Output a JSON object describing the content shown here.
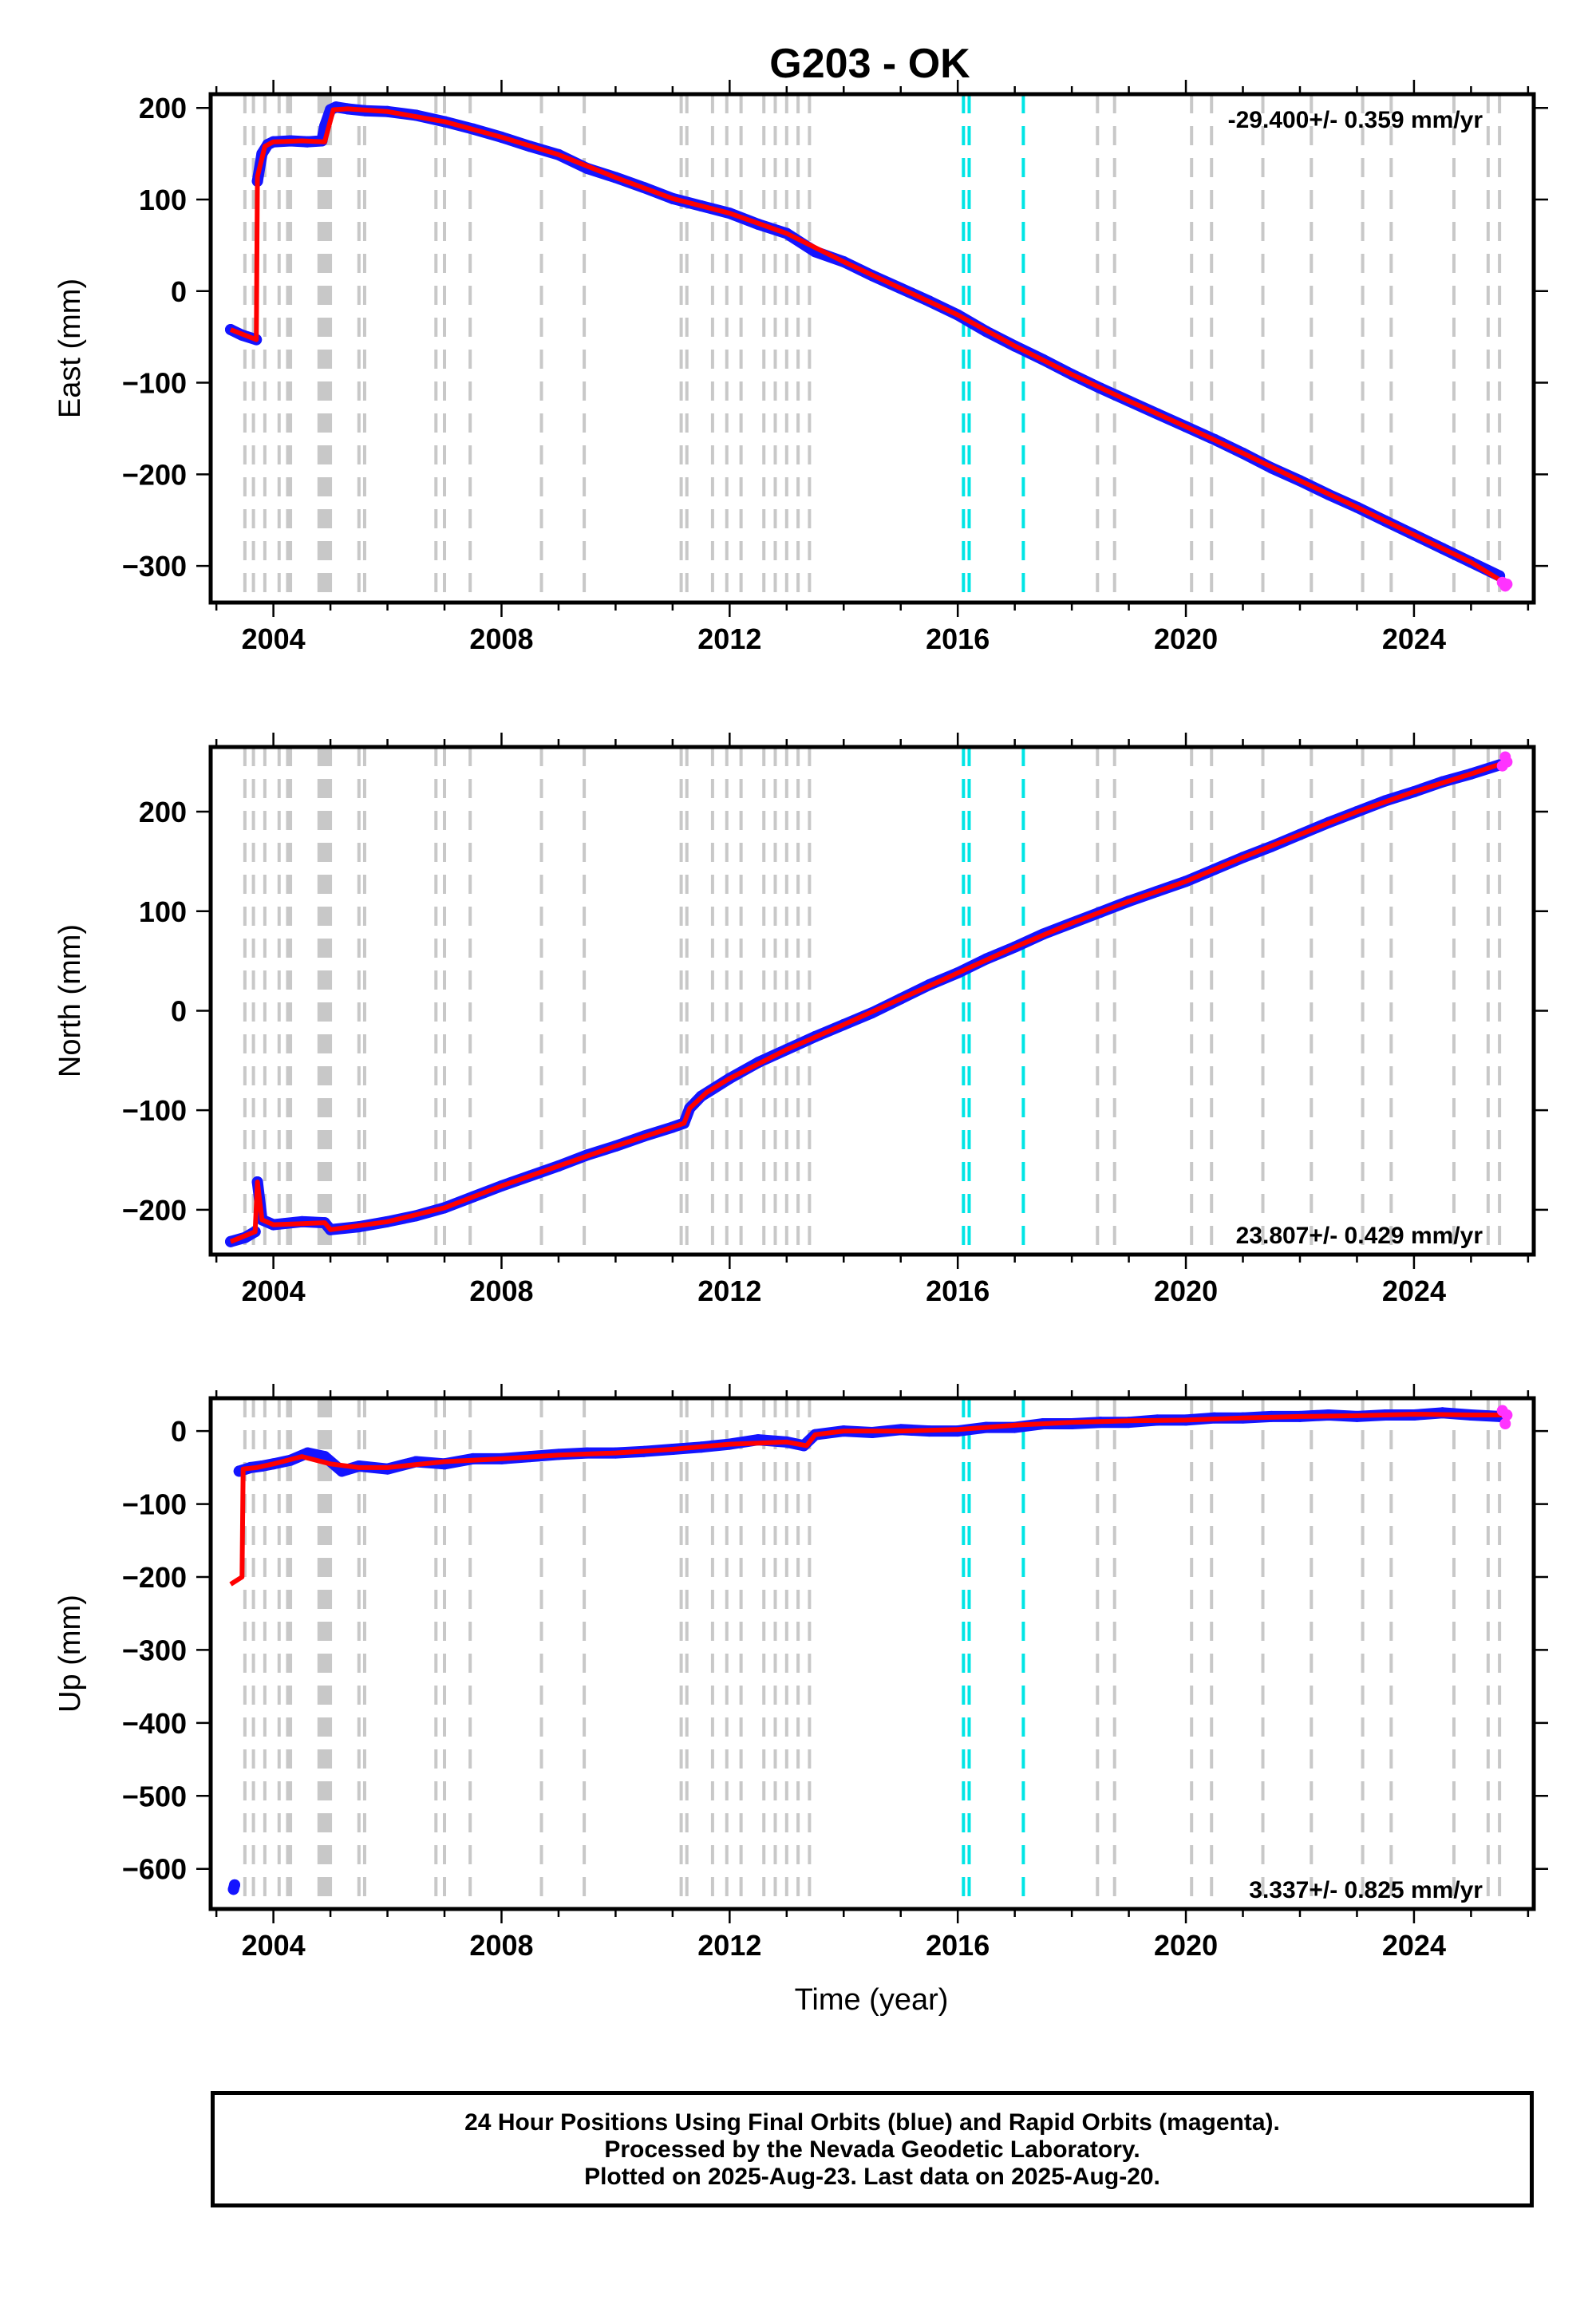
{
  "title": "G203 - OK",
  "xlabel": "Time (year)",
  "footer": {
    "line1": "24 Hour Positions Using Final Orbits (blue) and Rapid Orbits (magenta).",
    "line2": "Processed by the Nevada Geodetic Laboratory.",
    "line3": "Plotted on 2025-Aug-23. Last data on 2025-Aug-20."
  },
  "colors": {
    "final_orbits": "#1414ff",
    "rapid_orbits": "#ff33ff",
    "model": "#ff0000",
    "equipment_change": "#c8c8c8",
    "earthquake": "#00e5e5"
  },
  "chart_data": [
    {
      "type": "scatter",
      "panel": "east",
      "ylabel": "East (mm)",
      "rate_label": "-29.400+/- 0.359 mm/yr",
      "xlim": [
        2002.9,
        2026.1
      ],
      "ylim": [
        -340,
        215
      ],
      "xticks": [
        2004,
        2008,
        2012,
        2016,
        2020,
        2024
      ],
      "yticks": [
        200,
        100,
        0,
        -100,
        -200,
        -300
      ],
      "grid": false,
      "series": [
        {
          "name": "Final Orbits",
          "color": "blue",
          "x": [
            2003.25,
            2003.45,
            2003.7,
            2003.72,
            2003.8,
            2003.9,
            2004.0,
            2004.3,
            2004.6,
            2004.85,
            2004.9,
            2005.0,
            2005.1,
            2005.3,
            2005.6,
            2006.0,
            2006.5,
            2007.0,
            2007.5,
            2008.0,
            2008.5,
            2009.0,
            2009.5,
            2010.0,
            2010.5,
            2011.0,
            2011.5,
            2012.0,
            2012.5,
            2013.0,
            2013.5,
            2014.0,
            2014.5,
            2015.0,
            2015.5,
            2016.0,
            2016.5,
            2017.0,
            2017.5,
            2018.0,
            2018.5,
            2019.0,
            2019.5,
            2020.0,
            2020.5,
            2021.0,
            2021.5,
            2022.0,
            2022.5,
            2023.0,
            2023.5,
            2024.0,
            2024.5,
            2025.0,
            2025.5
          ],
          "y": [
            -42,
            -48,
            -53,
            120,
            150,
            160,
            163,
            164,
            163,
            164,
            180,
            198,
            201,
            199,
            197,
            196,
            192,
            185,
            177,
            168,
            158,
            149,
            134,
            124,
            113,
            101,
            93,
            85,
            73,
            63,
            43,
            32,
            17,
            3,
            -11,
            -26,
            -44,
            -60,
            -75,
            -91,
            -106,
            -120,
            -134,
            -148,
            -162,
            -177,
            -193,
            -207,
            -222,
            -236,
            -251,
            -266,
            -281,
            -296,
            -311
          ]
        },
        {
          "name": "Rapid Orbits",
          "color": "magenta",
          "x": [
            2025.55,
            2025.6,
            2025.63
          ],
          "y": [
            -318,
            -322,
            -320
          ]
        }
      ],
      "model": {
        "x": [
          2003.25,
          2003.7,
          2003.72,
          2003.85,
          2004.0,
          2004.5,
          2004.9,
          2005.05,
          2005.3,
          2006.0,
          2007.0,
          2008.0,
          2009.0,
          2010.0,
          2011.0,
          2012.0,
          2013.0,
          2014.0,
          2015.0,
          2016.0,
          2017.0,
          2018.0,
          2019.0,
          2020.0,
          2021.0,
          2022.0,
          2023.0,
          2024.0,
          2025.0,
          2025.63
        ],
        "y": [
          -42,
          -53,
          125,
          158,
          163,
          164,
          163,
          198,
          199,
          196,
          185,
          168,
          149,
          124,
          101,
          85,
          63,
          32,
          3,
          -26,
          -60,
          -91,
          -120,
          -148,
          -177,
          -207,
          -236,
          -266,
          -296,
          -320
        ]
      }
    },
    {
      "type": "scatter",
      "panel": "north",
      "ylabel": "North (mm)",
      "rate_label": "23.807+/- 0.429 mm/yr",
      "xlim": [
        2002.9,
        2026.1
      ],
      "ylim": [
        -245,
        265
      ],
      "xticks": [
        2004,
        2008,
        2012,
        2016,
        2020,
        2024
      ],
      "yticks": [
        200,
        100,
        0,
        -100,
        -200
      ],
      "grid": false,
      "series": [
        {
          "name": "Final Orbits",
          "color": "blue",
          "x": [
            2003.25,
            2003.5,
            2003.68,
            2003.72,
            2003.8,
            2004.0,
            2004.5,
            2004.9,
            2005.0,
            2005.5,
            2006.0,
            2006.5,
            2007.0,
            2007.5,
            2008.0,
            2008.5,
            2009.0,
            2009.5,
            2010.0,
            2010.5,
            2011.0,
            2011.2,
            2011.3,
            2011.5,
            2012.0,
            2012.5,
            2013.0,
            2013.5,
            2014.0,
            2014.5,
            2015.0,
            2015.5,
            2016.0,
            2016.5,
            2017.0,
            2017.5,
            2018.0,
            2018.5,
            2019.0,
            2019.5,
            2020.0,
            2020.5,
            2021.0,
            2021.5,
            2022.0,
            2022.5,
            2023.0,
            2023.5,
            2024.0,
            2024.5,
            2025.0,
            2025.5
          ],
          "y": [
            -232,
            -228,
            -222,
            -172,
            -210,
            -215,
            -212,
            -213,
            -220,
            -217,
            -212,
            -206,
            -198,
            -187,
            -176,
            -166,
            -156,
            -145,
            -136,
            -126,
            -117,
            -113,
            -98,
            -86,
            -68,
            -52,
            -39,
            -26,
            -14,
            -2,
            12,
            26,
            38,
            52,
            64,
            77,
            88,
            99,
            110,
            120,
            130,
            142,
            154,
            165,
            177,
            189,
            200,
            211,
            220,
            230,
            238,
            247
          ]
        },
        {
          "name": "Rapid Orbits",
          "color": "magenta",
          "x": [
            2025.55,
            2025.6,
            2025.63
          ],
          "y": [
            246,
            255,
            250
          ]
        }
      ],
      "model": {
        "x": [
          2003.25,
          2003.68,
          2003.72,
          2003.8,
          2004.0,
          2004.9,
          2005.0,
          2006.0,
          2007.0,
          2008.0,
          2009.0,
          2010.0,
          2011.0,
          2011.2,
          2011.3,
          2011.6,
          2012.0,
          2013.0,
          2014.0,
          2015.0,
          2016.0,
          2017.0,
          2018.0,
          2019.0,
          2020.0,
          2021.0,
          2022.0,
          2023.0,
          2024.0,
          2025.0,
          2025.63
        ],
        "y": [
          -232,
          -222,
          -172,
          -210,
          -215,
          -213,
          -220,
          -212,
          -198,
          -176,
          -156,
          -136,
          -117,
          -113,
          -98,
          -82,
          -68,
          -39,
          -14,
          12,
          38,
          64,
          88,
          110,
          130,
          154,
          177,
          200,
          220,
          238,
          250
        ]
      }
    },
    {
      "type": "scatter",
      "panel": "up",
      "ylabel": "Up (mm)",
      "rate_label": "3.337+/- 0.825 mm/yr",
      "xlim": [
        2002.9,
        2026.1
      ],
      "ylim": [
        -655,
        45
      ],
      "xticks": [
        2004,
        2008,
        2012,
        2016,
        2020,
        2024
      ],
      "yticks": [
        0,
        -100,
        -200,
        -300,
        -400,
        -500,
        -600
      ],
      "grid": false,
      "series": [
        {
          "name": "Final Orbits",
          "color": "blue",
          "x": [
            2003.3,
            2003.32,
            2003.4,
            2003.6,
            2003.8,
            2004.0,
            2004.3,
            2004.6,
            2004.9,
            2005.2,
            2005.5,
            2006.0,
            2006.5,
            2007.0,
            2007.5,
            2008.0,
            2008.5,
            2009.0,
            2009.5,
            2010.0,
            2010.5,
            2011.0,
            2011.5,
            2012.0,
            2012.5,
            2013.0,
            2013.3,
            2013.5,
            2014.0,
            2014.5,
            2015.0,
            2015.5,
            2016.0,
            2016.5,
            2017.0,
            2017.5,
            2018.0,
            2018.5,
            2019.0,
            2019.5,
            2020.0,
            2020.5,
            2021.0,
            2021.5,
            2022.0,
            2022.5,
            2023.0,
            2023.5,
            2024.0,
            2024.5,
            2025.0,
            2025.5
          ],
          "y": [
            -628,
            -622,
            -55,
            -50,
            -48,
            -45,
            -40,
            -30,
            -35,
            -55,
            -48,
            -52,
            -42,
            -45,
            -38,
            -38,
            -35,
            -32,
            -30,
            -30,
            -28,
            -25,
            -22,
            -18,
            -12,
            -15,
            -20,
            -5,
            0,
            -2,
            2,
            0,
            0,
            5,
            5,
            10,
            10,
            12,
            12,
            15,
            15,
            18,
            18,
            20,
            20,
            22,
            20,
            22,
            22,
            25,
            22,
            20
          ]
        },
        {
          "name": "Rapid Orbits",
          "color": "magenta",
          "x": [
            2025.55,
            2025.6,
            2025.63
          ],
          "y": [
            28,
            10,
            22
          ]
        }
      ],
      "model": {
        "x": [
          2003.25,
          2003.45,
          2003.47,
          2003.7,
          2004.0,
          2004.5,
          2005.0,
          2005.5,
          2006.0,
          2007.0,
          2008.0,
          2009.0,
          2010.0,
          2011.0,
          2012.0,
          2013.0,
          2013.35,
          2013.5,
          2014.0,
          2015.0,
          2016.0,
          2017.0,
          2018.0,
          2019.0,
          2020.0,
          2021.0,
          2022.0,
          2023.0,
          2024.0,
          2025.0,
          2025.63
        ],
        "y": [
          -210,
          -200,
          -52,
          -50,
          -45,
          -35,
          -45,
          -50,
          -50,
          -42,
          -38,
          -33,
          -30,
          -25,
          -18,
          -15,
          -20,
          -5,
          0,
          0,
          2,
          8,
          12,
          14,
          15,
          18,
          20,
          21,
          23,
          22,
          22
        ]
      }
    }
  ],
  "equipment_changes": [
    2003.5,
    2003.65,
    2003.85,
    2004.1,
    2004.25,
    2004.3,
    2004.8,
    2004.85,
    2004.9,
    2004.95,
    2005.0,
    2005.5,
    2005.6,
    2006.85,
    2007.0,
    2007.45,
    2008.7,
    2009.45,
    2011.15,
    2011.25,
    2011.7,
    2011.95,
    2012.2,
    2012.6,
    2012.8,
    2013.0,
    2013.2,
    2013.4,
    2018.45,
    2018.75,
    2020.1,
    2020.45,
    2021.35,
    2022.2,
    2023.1,
    2023.6,
    2024.7,
    2025.3,
    2025.5
  ],
  "earthquakes": [
    2016.1,
    2016.2,
    2017.15
  ]
}
